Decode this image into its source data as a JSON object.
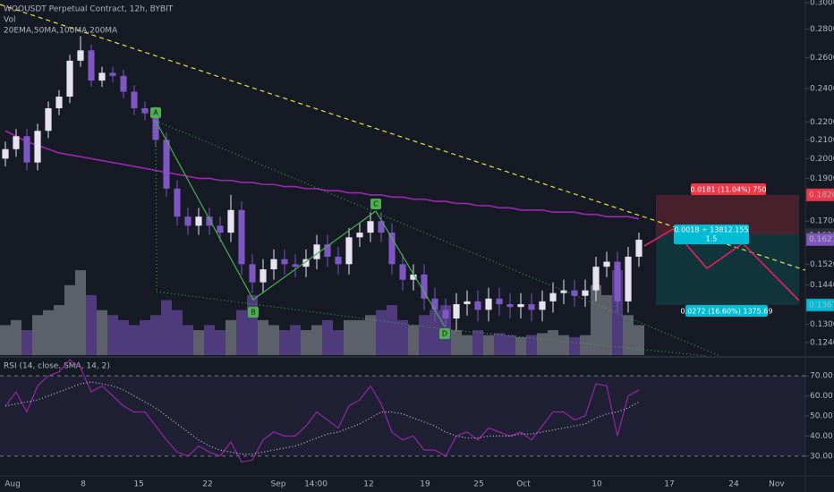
{
  "chart_data": [
    {
      "type": "candlestick",
      "title": "WOOUSDT Perpetual Contract, 12h, BYBIT",
      "volume_label": "Vol",
      "ma_label": "20EMA,50MA,100MA,200MA",
      "open": [
        0.2,
        0.205,
        0.212,
        0.198,
        0.215,
        0.228,
        0.235,
        0.258,
        0.265,
        0.245,
        0.25,
        0.248,
        0.238,
        0.228,
        0.225,
        0.21,
        0.185,
        0.172,
        0.168,
        0.172,
        0.168,
        0.165,
        0.175,
        0.152,
        0.145,
        0.15,
        0.154,
        0.152,
        0.151,
        0.154,
        0.16,
        0.155,
        0.152,
        0.163,
        0.165,
        0.17,
        0.165,
        0.152,
        0.146,
        0.148,
        0.139,
        0.135,
        0.132,
        0.137,
        0.138,
        0.135,
        0.139,
        0.137,
        0.136,
        0.137,
        0.135,
        0.138,
        0.141,
        0.142,
        0.14,
        0.142,
        0.151,
        0.153,
        0.138,
        0.155
      ],
      "high": [
        0.209,
        0.216,
        0.216,
        0.219,
        0.232,
        0.239,
        0.262,
        0.275,
        0.269,
        0.254,
        0.254,
        0.252,
        0.242,
        0.232,
        0.229,
        0.214,
        0.189,
        0.176,
        0.176,
        0.176,
        0.172,
        0.182,
        0.179,
        0.156,
        0.154,
        0.158,
        0.158,
        0.156,
        0.158,
        0.164,
        0.164,
        0.159,
        0.167,
        0.169,
        0.174,
        0.174,
        0.169,
        0.156,
        0.152,
        0.152,
        0.143,
        0.139,
        0.141,
        0.142,
        0.142,
        0.143,
        0.143,
        0.141,
        0.141,
        0.141,
        0.142,
        0.145,
        0.146,
        0.146,
        0.146,
        0.155,
        0.157,
        0.157,
        0.159,
        0.165
      ],
      "low": [
        0.196,
        0.201,
        0.194,
        0.194,
        0.211,
        0.224,
        0.231,
        0.254,
        0.241,
        0.241,
        0.244,
        0.234,
        0.224,
        0.221,
        0.206,
        0.181,
        0.168,
        0.164,
        0.164,
        0.164,
        0.161,
        0.161,
        0.148,
        0.141,
        0.141,
        0.146,
        0.148,
        0.147,
        0.147,
        0.15,
        0.151,
        0.148,
        0.148,
        0.159,
        0.161,
        0.161,
        0.148,
        0.142,
        0.142,
        0.135,
        0.131,
        0.128,
        0.128,
        0.133,
        0.131,
        0.131,
        0.133,
        0.132,
        0.132,
        0.131,
        0.131,
        0.134,
        0.137,
        0.136,
        0.136,
        0.138,
        0.147,
        0.134,
        0.134,
        0.151
      ],
      "close": [
        0.205,
        0.212,
        0.198,
        0.215,
        0.228,
        0.235,
        0.258,
        0.265,
        0.245,
        0.25,
        0.248,
        0.238,
        0.228,
        0.225,
        0.21,
        0.185,
        0.172,
        0.168,
        0.172,
        0.168,
        0.165,
        0.175,
        0.152,
        0.145,
        0.15,
        0.154,
        0.152,
        0.151,
        0.154,
        0.16,
        0.155,
        0.152,
        0.163,
        0.165,
        0.17,
        0.165,
        0.152,
        0.146,
        0.148,
        0.139,
        0.135,
        0.132,
        0.137,
        0.138,
        0.135,
        0.139,
        0.137,
        0.136,
        0.137,
        0.135,
        0.138,
        0.141,
        0.142,
        0.14,
        0.142,
        0.151,
        0.153,
        0.138,
        0.155,
        0.162
      ],
      "up_color": "#e6e2ef",
      "down_color": "#7e57c2",
      "volume": [
        30,
        35,
        25,
        40,
        45,
        50,
        70,
        85,
        60,
        45,
        40,
        35,
        30,
        35,
        40,
        55,
        45,
        30,
        25,
        30,
        25,
        35,
        45,
        60,
        35,
        30,
        25,
        30,
        25,
        30,
        35,
        25,
        35,
        35,
        40,
        45,
        50,
        35,
        30,
        40,
        45,
        50,
        25,
        20,
        25,
        20,
        22,
        20,
        18,
        20,
        22,
        25,
        20,
        18,
        20,
        70,
        60,
        85,
        40,
        30
      ],
      "ma": {
        "color": "#9c27b0",
        "values": [
          0.215,
          0.212,
          0.209,
          0.207,
          0.205,
          0.203,
          0.202,
          0.201,
          0.2,
          0.199,
          0.198,
          0.197,
          0.196,
          0.195,
          0.194,
          0.193,
          0.192,
          0.191,
          0.19,
          0.19,
          0.189,
          0.189,
          0.188,
          0.188,
          0.187,
          0.187,
          0.186,
          0.186,
          0.185,
          0.185,
          0.184,
          0.184,
          0.183,
          0.183,
          0.182,
          0.182,
          0.181,
          0.181,
          0.18,
          0.18,
          0.179,
          0.179,
          0.178,
          0.178,
          0.177,
          0.177,
          0.176,
          0.176,
          0.175,
          0.175,
          0.175,
          0.174,
          0.174,
          0.174,
          0.173,
          0.173,
          0.172,
          0.172,
          0.172,
          0.171
        ]
      },
      "log_scale": true,
      "grid": false,
      "ylim": [
        0.12,
        0.3
      ],
      "yticks": [
        {
          "value": 0.3,
          "label": "0.3000"
        },
        {
          "value": 0.28,
          "label": "0.2800"
        },
        {
          "value": 0.26,
          "label": "0.2600"
        },
        {
          "value": 0.24,
          "label": "0.2400"
        },
        {
          "value": 0.22,
          "label": "0.2200"
        },
        {
          "value": 0.21,
          "label": "0.2100"
        },
        {
          "value": 0.2,
          "label": "0.2000"
        },
        {
          "value": 0.19,
          "label": "0.1900"
        },
        {
          "value": 0.17,
          "label": "0.1700"
        },
        {
          "value": 0.152,
          "label": "0.1520"
        },
        {
          "value": 0.144,
          "label": "0.1440"
        },
        {
          "value": 0.13,
          "label": "0.1300"
        },
        {
          "value": 0.124,
          "label": "0.1240"
        }
      ],
      "xlim": [
        -0.5,
        74.5
      ],
      "xticks": [
        {
          "value": 0.67,
          "label": "Aug"
        },
        {
          "value": 7.25,
          "label": "8"
        },
        {
          "value": 12.42,
          "label": "15"
        },
        {
          "value": 18.83,
          "label": "22"
        },
        {
          "value": 25.42,
          "label": "Sep"
        },
        {
          "value": 28.92,
          "label": "14:00"
        },
        {
          "value": 33.83,
          "label": "12"
        },
        {
          "value": 39.08,
          "label": "19"
        },
        {
          "value": 44.08,
          "label": "25"
        },
        {
          "value": 48.25,
          "label": "Oct"
        },
        {
          "value": 55.08,
          "label": "10"
        },
        {
          "value": 61.83,
          "label": "17"
        },
        {
          "value": 67.83,
          "label": "24"
        },
        {
          "value": 71.83,
          "label": "Nov"
        }
      ],
      "price_labels": [
        {
          "value": 0.182,
          "label": "0.1820",
          "color": "#f23645"
        },
        {
          "value": 0.1639,
          "label": "0.1639",
          "color": "#2a2e39"
        },
        {
          "value": 0.1621,
          "label": "0.1621",
          "color": "#7e57c2"
        },
        {
          "value": 0.1367,
          "label": "0.1367",
          "color": "#00bcd4"
        }
      ],
      "annotations": {
        "points": [
          "A",
          "B",
          "C",
          "D"
        ],
        "upper": "0.0181 (11.04%) 750",
        "middle": "0.0018 ÷ 13812.155",
        "ratio": "1.5",
        "lower": "0.0272 (16.60%) 1375.69"
      }
    },
    {
      "type": "line",
      "title": "RSI (14, close, SMA, 14, 2)",
      "series": [
        {
          "color": "#9c27b0",
          "dashed": false,
          "values": [
            55,
            62,
            52,
            65,
            70,
            72,
            78,
            74,
            62,
            65,
            60,
            55,
            52,
            52,
            45,
            38,
            32,
            30,
            35,
            32,
            30,
            37,
            27,
            28,
            38,
            42,
            40,
            40,
            45,
            52,
            48,
            44,
            55,
            58,
            65,
            56,
            42,
            38,
            40,
            33,
            33,
            30,
            40,
            42,
            38,
            44,
            42,
            40,
            42,
            38,
            45,
            52,
            52,
            48,
            50,
            66,
            65,
            40,
            60,
            63
          ]
        },
        {
          "color": "#d1d4dc",
          "dashed": true,
          "values": [
            55,
            56,
            57,
            58,
            60,
            62,
            64,
            66,
            67,
            66,
            65,
            63,
            60,
            57,
            54,
            50,
            46,
            42,
            38,
            35,
            33,
            32,
            31,
            31,
            32,
            33,
            34,
            35,
            37,
            39,
            41,
            42,
            44,
            46,
            49,
            52,
            52,
            51,
            49,
            47,
            45,
            42,
            40,
            39,
            39,
            40,
            40,
            40,
            41,
            41,
            42,
            43,
            44,
            45,
            46,
            49,
            51,
            52,
            54,
            57
          ]
        }
      ],
      "ylim": [
        21,
        79
      ],
      "yticks": [
        {
          "value": 70,
          "label": "70.00"
        },
        {
          "value": 60,
          "label": "60.00"
        },
        {
          "value": 50,
          "label": "50.00"
        },
        {
          "value": 40,
          "label": "40.00"
        },
        {
          "value": 30,
          "label": "30.00"
        }
      ],
      "band": [
        30,
        70
      ]
    }
  ]
}
